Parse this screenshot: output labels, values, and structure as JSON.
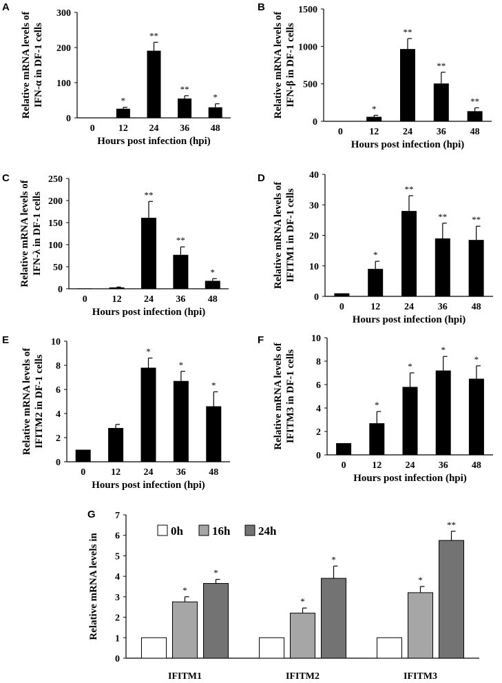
{
  "chart_data": [
    {
      "id": "A",
      "panel_label": "A",
      "type": "bar",
      "categories": [
        "0",
        "12",
        "24",
        "36",
        "48"
      ],
      "values": [
        1,
        26,
        191,
        55,
        30
      ],
      "errors": [
        0,
        4,
        24,
        8,
        10
      ],
      "significance": [
        "",
        "*",
        "**",
        "**",
        "*"
      ],
      "ylim": [
        0,
        300
      ],
      "yticks": [
        "0",
        "100",
        "200",
        "300"
      ],
      "ylabel_lines": [
        "Relative mRNA levels of",
        "IFN-α in DF-1 cells"
      ],
      "xlabel": "Hours post infection (hpi)"
    },
    {
      "id": "B",
      "panel_label": "B",
      "type": "bar",
      "categories": [
        "0",
        "12",
        "24",
        "36",
        "48"
      ],
      "values": [
        3,
        60,
        965,
        505,
        135
      ],
      "errors": [
        0,
        20,
        140,
        150,
        45
      ],
      "significance": [
        "",
        "*",
        "**",
        "**",
        "**"
      ],
      "ylim": [
        0,
        1500
      ],
      "yticks": [
        "0",
        "500",
        "1000",
        "1500"
      ],
      "ylabel_lines": [
        "Relative mRNA levels of",
        "IFN-β in DF-1 cells"
      ],
      "xlabel": "Hours post infection (hpi)"
    },
    {
      "id": "C",
      "panel_label": "C",
      "type": "bar",
      "categories": [
        "0",
        "12",
        "24",
        "36",
        "48"
      ],
      "values": [
        1,
        3,
        161,
        77,
        18
      ],
      "errors": [
        0,
        1,
        37,
        18,
        5
      ],
      "significance": [
        "",
        "",
        "**",
        "**",
        "*"
      ],
      "ylim": [
        0,
        250
      ],
      "yticks": [
        "0",
        "50",
        "100",
        "150",
        "200",
        "250"
      ],
      "ylabel_lines": [
        "Relative mRNA levels of",
        "IFN-λ in DF-1 cells"
      ],
      "xlabel": "Hours post infection (hpi)"
    },
    {
      "id": "D",
      "panel_label": "D",
      "type": "bar",
      "categories": [
        "0",
        "12",
        "24",
        "36",
        "48"
      ],
      "values": [
        1,
        9,
        28,
        19,
        18.5
      ],
      "errors": [
        0,
        2.5,
        5,
        5,
        4.5
      ],
      "significance": [
        "",
        "*",
        "**",
        "**",
        "**"
      ],
      "ylim": [
        0,
        40
      ],
      "yticks": [
        "0",
        "10",
        "20",
        "30",
        "40"
      ],
      "ylabel_lines": [
        "Relative mRNA levels of",
        "IFITM1 in DF-1 cells"
      ],
      "xlabel": "Hours post infection (hpi)"
    },
    {
      "id": "E",
      "panel_label": "E",
      "type": "bar",
      "categories": [
        "0",
        "12",
        "24",
        "36",
        "48"
      ],
      "values": [
        1,
        2.8,
        7.8,
        6.7,
        4.6
      ],
      "errors": [
        0,
        0.3,
        0.8,
        0.8,
        1.2
      ],
      "significance": [
        "",
        "",
        "*",
        "*",
        "*"
      ],
      "ylim": [
        0,
        10
      ],
      "yticks": [
        "0",
        "2",
        "4",
        "6",
        "8",
        "10"
      ],
      "ylabel_lines": [
        "Relative mRNA levels of",
        "IFITM2 in DF-1 cells"
      ],
      "xlabel": "Hours post infection (hpi)"
    },
    {
      "id": "F",
      "panel_label": "F",
      "type": "bar",
      "categories": [
        "0",
        "12",
        "24",
        "36",
        "48"
      ],
      "values": [
        1,
        2.7,
        5.8,
        7.2,
        6.5
      ],
      "errors": [
        0,
        1.0,
        1.2,
        1.2,
        1.1
      ],
      "significance": [
        "",
        "*",
        "*",
        "*",
        "*"
      ],
      "ylim": [
        0,
        10
      ],
      "yticks": [
        "0",
        "2",
        "4",
        "6",
        "8",
        "10"
      ],
      "ylabel_lines": [
        "Relative mRNA levels of",
        "IFITM3 in DF-1 cells"
      ],
      "xlabel": "Hours post infection (hpi)"
    },
    {
      "id": "G",
      "panel_label": "G",
      "type": "bar",
      "categories": [
        "IFITM1",
        "IFITM2",
        "IFITM3"
      ],
      "series": [
        {
          "name": "0h",
          "color": "#ffffff",
          "values": [
            1,
            1,
            1
          ],
          "errors": [
            0,
            0,
            0
          ],
          "significance": [
            "",
            "",
            ""
          ]
        },
        {
          "name": "16h",
          "color": "#a6a6a6",
          "values": [
            2.75,
            2.2,
            3.2
          ],
          "errors": [
            0.25,
            0.25,
            0.3
          ],
          "significance": [
            "*",
            "*",
            "*"
          ]
        },
        {
          "name": "24h",
          "color": "#737373",
          "values": [
            3.65,
            3.9,
            5.75
          ],
          "errors": [
            0.2,
            0.6,
            0.45
          ],
          "significance": [
            "*",
            "*",
            "**"
          ]
        }
      ],
      "ylim": [
        0,
        7
      ],
      "yticks": [
        "0",
        "1",
        "2",
        "3",
        "4",
        "5",
        "6",
        "7"
      ],
      "ylabel": "Relative mRNA levels in",
      "xlabel": "",
      "legend": "top-left"
    }
  ]
}
